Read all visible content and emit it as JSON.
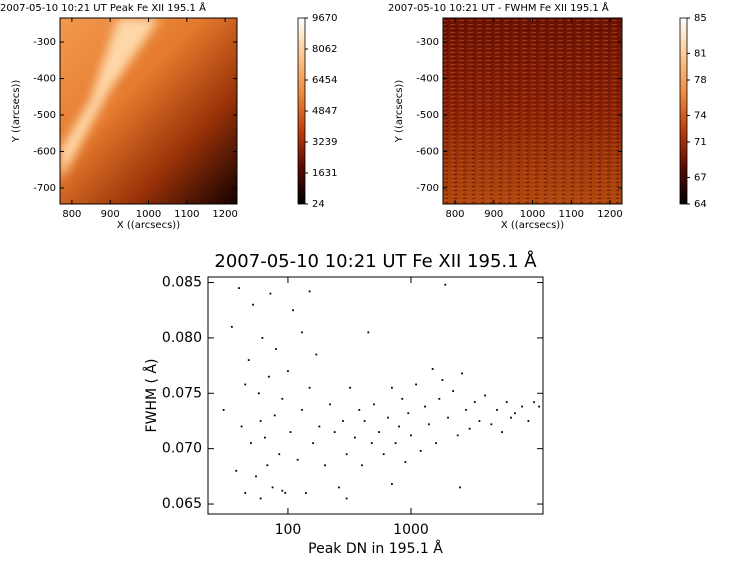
{
  "chart_data": [
    {
      "type": "image",
      "title": "2007-05-10 10:21 UT Peak Fe XII 195.1  Å",
      "xlabel": "X ((arcsecs))",
      "ylabel": "Y ((arcsecs))",
      "xlim": [
        769,
        1231
      ],
      "ylim": [
        -744,
        -234
      ],
      "xticks": [
        800,
        900,
        1000,
        1100,
        1200
      ],
      "yticks": [
        -300,
        -400,
        -500,
        -600,
        -700
      ],
      "colorbar": {
        "lim": [
          24,
          9670
        ],
        "ticks": [
          9670,
          8062,
          6454,
          4847,
          3239,
          1631,
          24
        ],
        "colormap": [
          "#000000",
          "#5a0c00",
          "#c0400c",
          "#f08c40",
          "#ffc890",
          "#ffffff"
        ]
      }
    },
    {
      "type": "image",
      "title": "2007-05-10 10:21 UT - FWHM Fe XII 195.1  Å",
      "xlabel": "X ((arcsecs))",
      "ylabel": "Y ((arcsecs))",
      "xlim": [
        769,
        1231
      ],
      "ylim": [
        -744,
        -234
      ],
      "xticks": [
        800,
        900,
        1000,
        1100,
        1200
      ],
      "yticks": [
        -300,
        -400,
        -500,
        -600,
        -700
      ],
      "colorbar": {
        "lim": [
          64,
          85
        ],
        "ticks": [
          85,
          81,
          78,
          74,
          71,
          67,
          64
        ],
        "colormap": [
          "#000000",
          "#5a0c00",
          "#c0400c",
          "#f08c40",
          "#ffc890",
          "#ffffff"
        ]
      }
    },
    {
      "type": "scatter",
      "title": "2007-05-10 10:21 UT Fe XII 195.1  Å",
      "xlabel": "Peak DN in 195.1  Å",
      "ylabel": "FWHM ( Å)",
      "xscale": "log",
      "xlim": [
        22.4,
        11830
      ],
      "ylim": [
        0.0641,
        0.0855
      ],
      "color": "#000000",
      "xticks": [
        100,
        1000
      ],
      "yticks": [
        {
          "value": 0.085,
          "label": "0.085"
        },
        {
          "value": 0.08,
          "label": "0.080"
        },
        {
          "value": 0.075,
          "label": "0.075"
        },
        {
          "value": 0.07,
          "label": "0.070"
        },
        {
          "value": 0.065,
          "label": "0.065"
        }
      ],
      "x": [
        30,
        35,
        38,
        40,
        42,
        45,
        48,
        50,
        52,
        55,
        58,
        60,
        62,
        65,
        68,
        70,
        72,
        75,
        78,
        80,
        85,
        90,
        95,
        100,
        105,
        110,
        120,
        130,
        140,
        150,
        160,
        170,
        180,
        200,
        220,
        240,
        260,
        280,
        300,
        320,
        350,
        380,
        400,
        420,
        450,
        480,
        500,
        550,
        600,
        650,
        700,
        750,
        800,
        850,
        900,
        950,
        1000,
        1100,
        1200,
        1300,
        1400,
        1500,
        1600,
        1700,
        1800,
        1900,
        2000,
        2200,
        2400,
        2600,
        2800,
        3000,
        3300,
        3600,
        4000,
        4500,
        5000,
        5500,
        6000,
        6500,
        7000,
        8000,
        9000,
        10000,
        11000,
        300,
        700,
        150,
        2500,
        60,
        90,
        45,
        130
      ],
      "y": [
        0.0735,
        0.081,
        0.068,
        0.0845,
        0.072,
        0.066,
        0.078,
        0.0705,
        0.083,
        0.0675,
        0.075,
        0.0655,
        0.08,
        0.071,
        0.0685,
        0.0765,
        0.084,
        0.0665,
        0.073,
        0.079,
        0.0695,
        0.0745,
        0.066,
        0.077,
        0.0715,
        0.0825,
        0.069,
        0.0735,
        0.066,
        0.0755,
        0.0705,
        0.0785,
        0.072,
        0.0685,
        0.074,
        0.0715,
        0.0665,
        0.0725,
        0.0695,
        0.0755,
        0.071,
        0.0735,
        0.0685,
        0.0725,
        0.0805,
        0.0705,
        0.074,
        0.0715,
        0.0695,
        0.0728,
        0.0755,
        0.0705,
        0.072,
        0.0745,
        0.0688,
        0.0732,
        0.0712,
        0.0758,
        0.0698,
        0.0738,
        0.0722,
        0.0772,
        0.0705,
        0.0745,
        0.0762,
        0.0848,
        0.0728,
        0.0752,
        0.0712,
        0.0768,
        0.0735,
        0.0718,
        0.0742,
        0.0725,
        0.0748,
        0.0722,
        0.0735,
        0.0715,
        0.0742,
        0.0728,
        0.0732,
        0.0738,
        0.0725,
        0.0742,
        0.0738,
        0.0655,
        0.0668,
        0.0842,
        0.0665,
        0.0725,
        0.0662,
        0.0758,
        0.0805
      ]
    }
  ]
}
